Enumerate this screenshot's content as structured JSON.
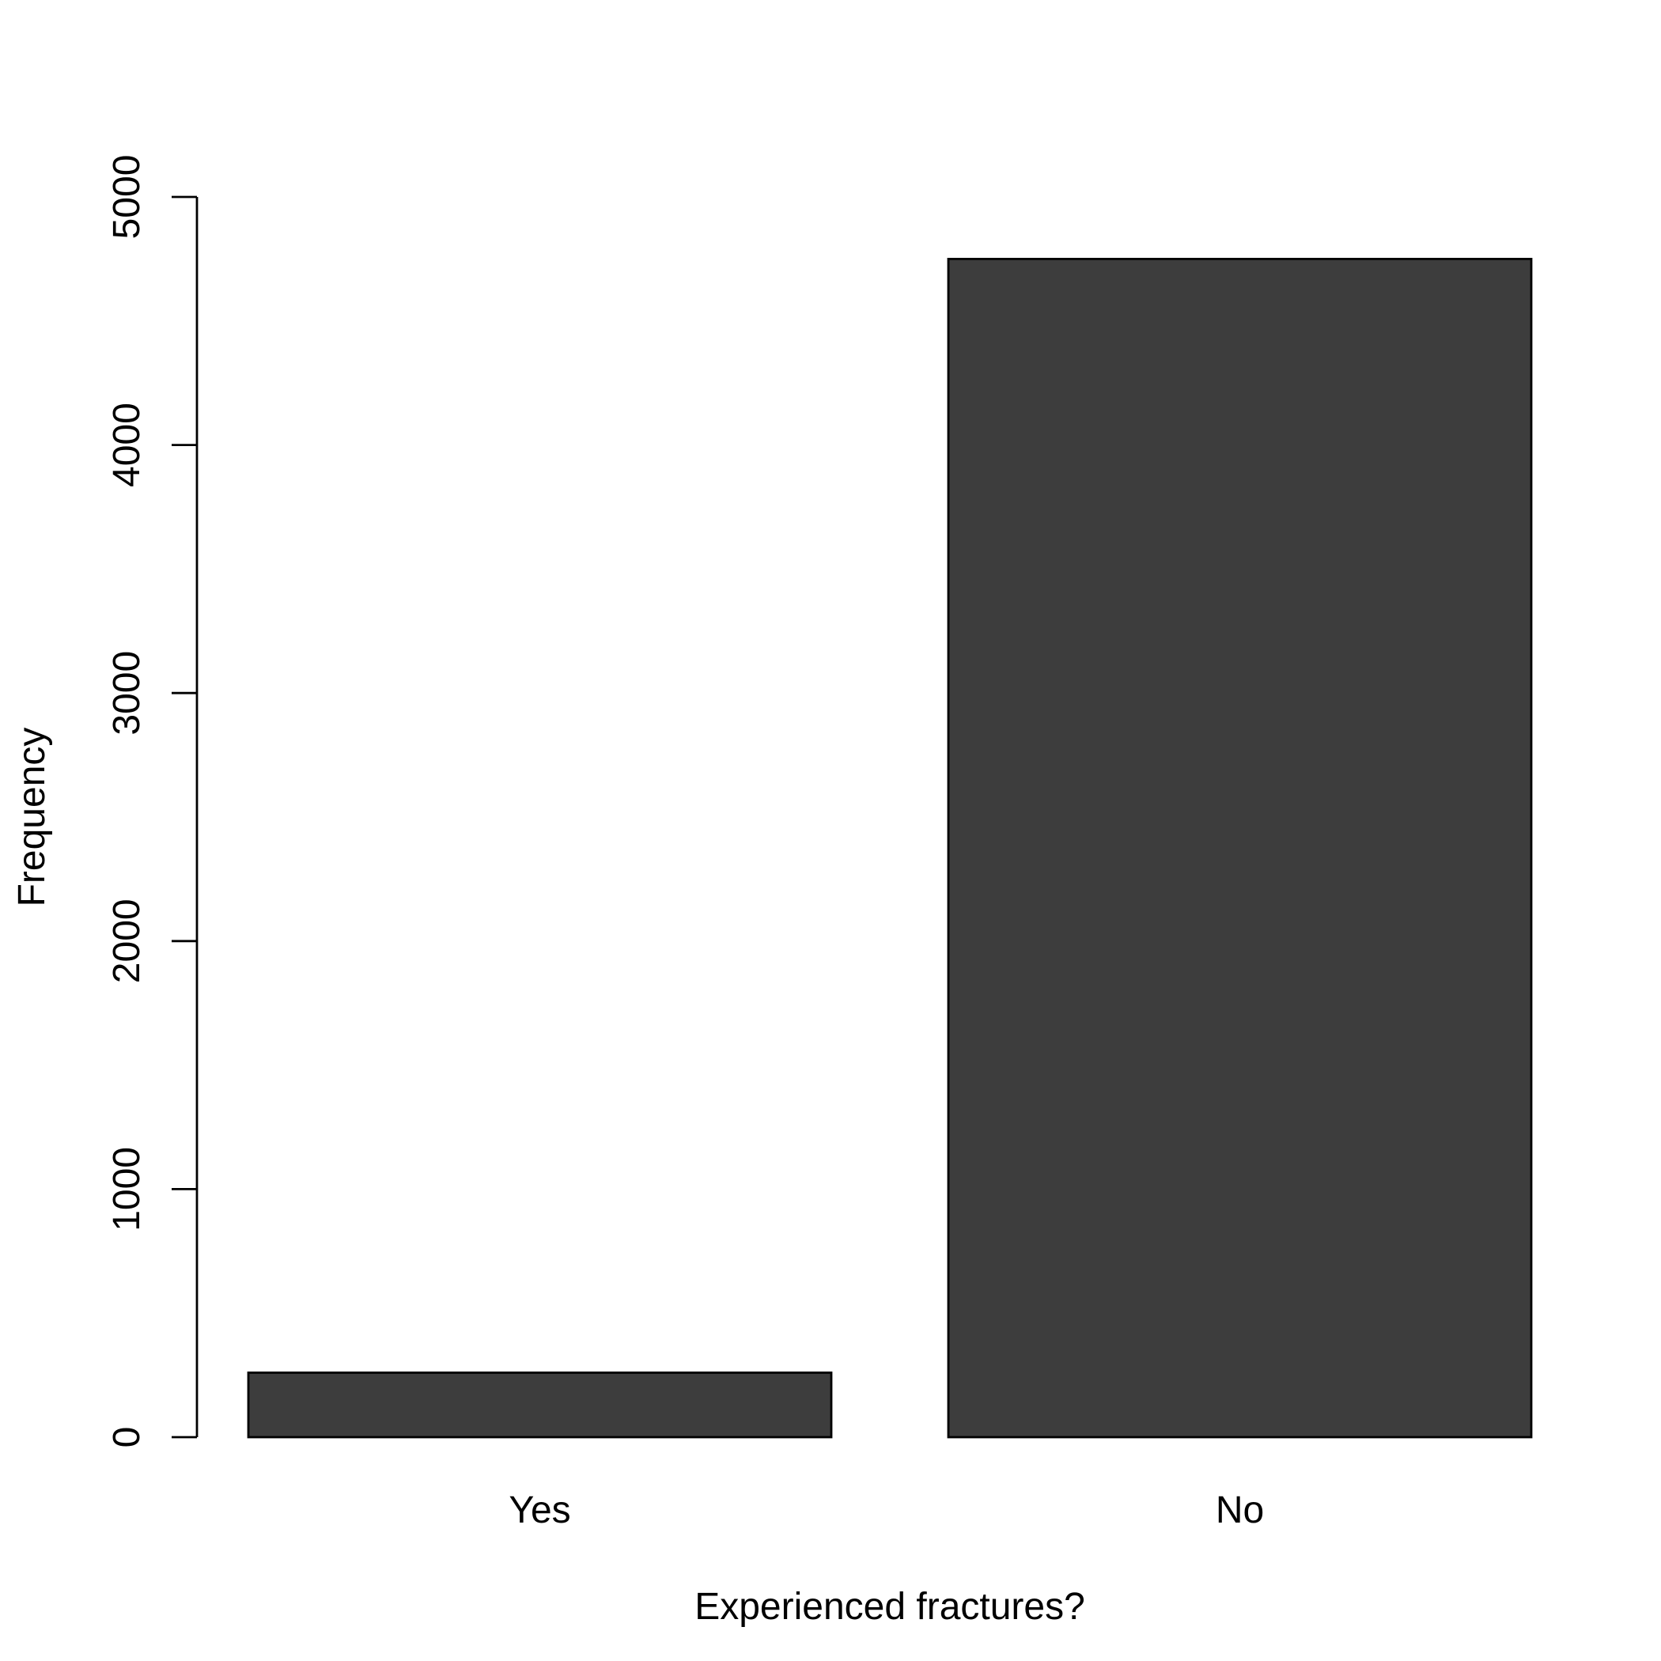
{
  "chart_data": {
    "type": "bar",
    "categories": [
      "Yes",
      "No"
    ],
    "values": [
      260,
      4750
    ],
    "title": "",
    "xlabel": "Experienced fractures?",
    "ylabel": "Frequency",
    "ylim": [
      0,
      5000
    ],
    "yticks": [
      0,
      1000,
      2000,
      3000,
      4000,
      5000
    ],
    "ytick_labels": [
      "0",
      "1000",
      "2000",
      "3000",
      "4000",
      "5000"
    ],
    "grid": false,
    "bar_color": "#3d3d3d",
    "edge_color": "#000000"
  }
}
